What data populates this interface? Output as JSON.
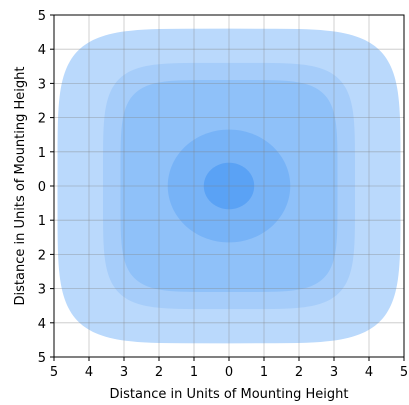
{
  "chart_data": {
    "type": "area",
    "title": "",
    "xlabel": "Distance in Units of Mounting Height",
    "ylabel": "Distance in Units of Mounting Height",
    "xlim": [
      -5,
      5
    ],
    "ylim": [
      -5,
      5
    ],
    "x_ticks": [
      -5,
      -4,
      -3,
      -2,
      -1,
      0,
      1,
      2,
      3,
      4,
      5
    ],
    "y_ticks": [
      -5,
      -4,
      -3,
      -2,
      -1,
      0,
      1,
      2,
      3,
      4,
      5
    ],
    "x_tick_labels": [
      "5",
      "4",
      "3",
      "2",
      "1",
      "0",
      "1",
      "2",
      "3",
      "4",
      "5"
    ],
    "y_tick_labels": [
      "5",
      "4",
      "3",
      "2",
      "1",
      "0",
      "1",
      "2",
      "3",
      "4",
      "5"
    ],
    "grid": true,
    "legend": "none",
    "contours": [
      {
        "level": 1,
        "color": "#bad9fc",
        "half_width": 4.9,
        "half_height": 4.6,
        "shape": "rounded-square"
      },
      {
        "level": 2,
        "color": "#a6cdfa",
        "half_width": 3.6,
        "half_height": 3.6,
        "shape": "rounded-square"
      },
      {
        "level": 3,
        "color": "#8fc1f9",
        "half_width": 3.1,
        "half_height": 3.1,
        "shape": "rounded-square"
      },
      {
        "level": 4,
        "color": "#77b3f7",
        "half_width": 1.75,
        "half_height": 1.65,
        "shape": "circle"
      },
      {
        "level": 5,
        "color": "#5aa2f5",
        "half_width": 0.72,
        "half_height": 0.68,
        "shape": "circle"
      }
    ]
  }
}
